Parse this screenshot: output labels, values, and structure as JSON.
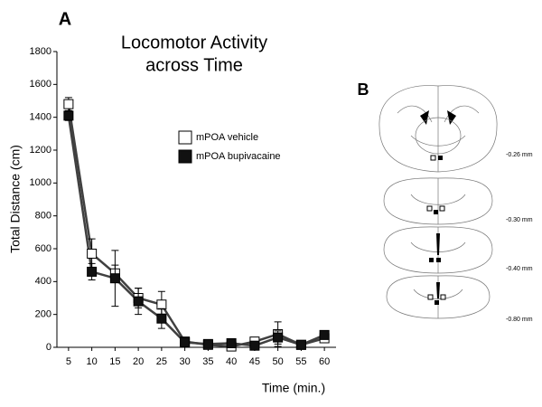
{
  "chart_data": {
    "type": "line",
    "panel_label": "A",
    "title": [
      "Locomotor Activity",
      "across Time"
    ],
    "xlabel": "Time (min.)",
    "ylabel": "Total Distance (cm)",
    "x": [
      5,
      10,
      15,
      20,
      25,
      30,
      35,
      40,
      45,
      50,
      55,
      60
    ],
    "xlim": [
      2.5,
      62.5
    ],
    "xticks": [
      5,
      10,
      15,
      20,
      25,
      30,
      35,
      40,
      45,
      50,
      55,
      60
    ],
    "ylim": [
      0,
      1800
    ],
    "yticks": [
      0,
      200,
      400,
      600,
      800,
      1000,
      1200,
      1400,
      1600,
      1800
    ],
    "line_color": "#404040",
    "legend": "upper right",
    "grid": false,
    "series": [
      {
        "name": "mPOA vehicle",
        "color": "#ffffff",
        "values": [
          1480,
          570,
          450,
          300,
          260,
          35,
          15,
          5,
          35,
          80,
          15,
          55
        ],
        "errors": [
          40,
          90,
          50,
          60,
          80,
          10,
          10,
          10,
          10,
          75,
          10,
          10
        ]
      },
      {
        "name": "mPOA bupivacaine",
        "color": "#111111",
        "values": [
          1410,
          460,
          420,
          280,
          175,
          30,
          20,
          25,
          10,
          60,
          15,
          75
        ],
        "errors": [
          30,
          50,
          170,
          80,
          60,
          10,
          10,
          10,
          10,
          40,
          10,
          10
        ]
      }
    ]
  },
  "panel_b": {
    "label": "B",
    "sections": [
      "-0.26 mm",
      "-0.30 mm",
      "-0.40 mm",
      "-0.80 mm"
    ]
  }
}
